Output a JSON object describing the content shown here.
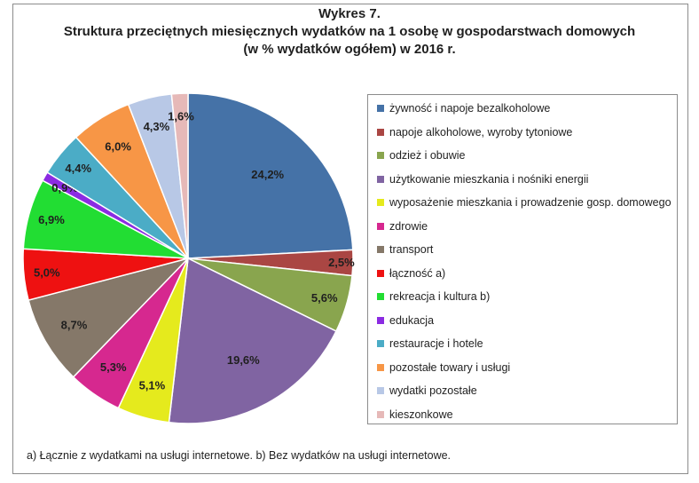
{
  "title_line1": "Wykres 7.",
  "title_line2": "Struktura przeciętnych miesięcznych wydatków na 1 osobę w gospodarstwach domowych",
  "title_line3": "(w % wydatków ogółem) w 2016 r.",
  "footnote": "a) Łącznie z wydatkami na usługi internetowe. b) Bez wydatków na usługi internetowe.",
  "chart_data": {
    "type": "pie",
    "title": "Struktura przeciętnych miesięcznych wydatków na 1 osobę w gospodarstwach domowych (w % wydatków ogółem) w 2016 r.",
    "legend_position": "right",
    "categories": [
      "żywność i napoje bezalkoholowe",
      "napoje alkoholowe, wyroby tytoniowe",
      "odzież i obuwie",
      "użytkowanie mieszkania i nośniki energii",
      "wyposażenie mieszkania i prowadzenie gosp. domowego",
      "zdrowie",
      "transport",
      "łączność a)",
      "rekreacja i kultura b)",
      "edukacja",
      "restauracje i hotele",
      "pozostałe towary i usługi",
      "wydatki pozostałe",
      "kieszonkowe"
    ],
    "values": [
      24.2,
      2.5,
      5.6,
      19.6,
      5.1,
      5.3,
      8.7,
      5.0,
      6.9,
      0.9,
      4.4,
      6.0,
      4.3,
      1.6
    ],
    "labels": [
      "24,2%",
      "2,5%",
      "5,6%",
      "19,6%",
      "5,1%",
      "5,3%",
      "8,7%",
      "5,0%",
      "6,9%",
      "0,9%",
      "4,4%",
      "6,0%",
      "4,3%",
      "1,6%"
    ],
    "colors": [
      "#4572a7",
      "#aa4643",
      "#89a54e",
      "#8064a2",
      "#e5ea1d",
      "#d6288f",
      "#857869",
      "#ee1111",
      "#22dd33",
      "#8b2be2",
      "#4bacc6",
      "#f79646",
      "#b8c8e6",
      "#e6b9b8"
    ]
  }
}
